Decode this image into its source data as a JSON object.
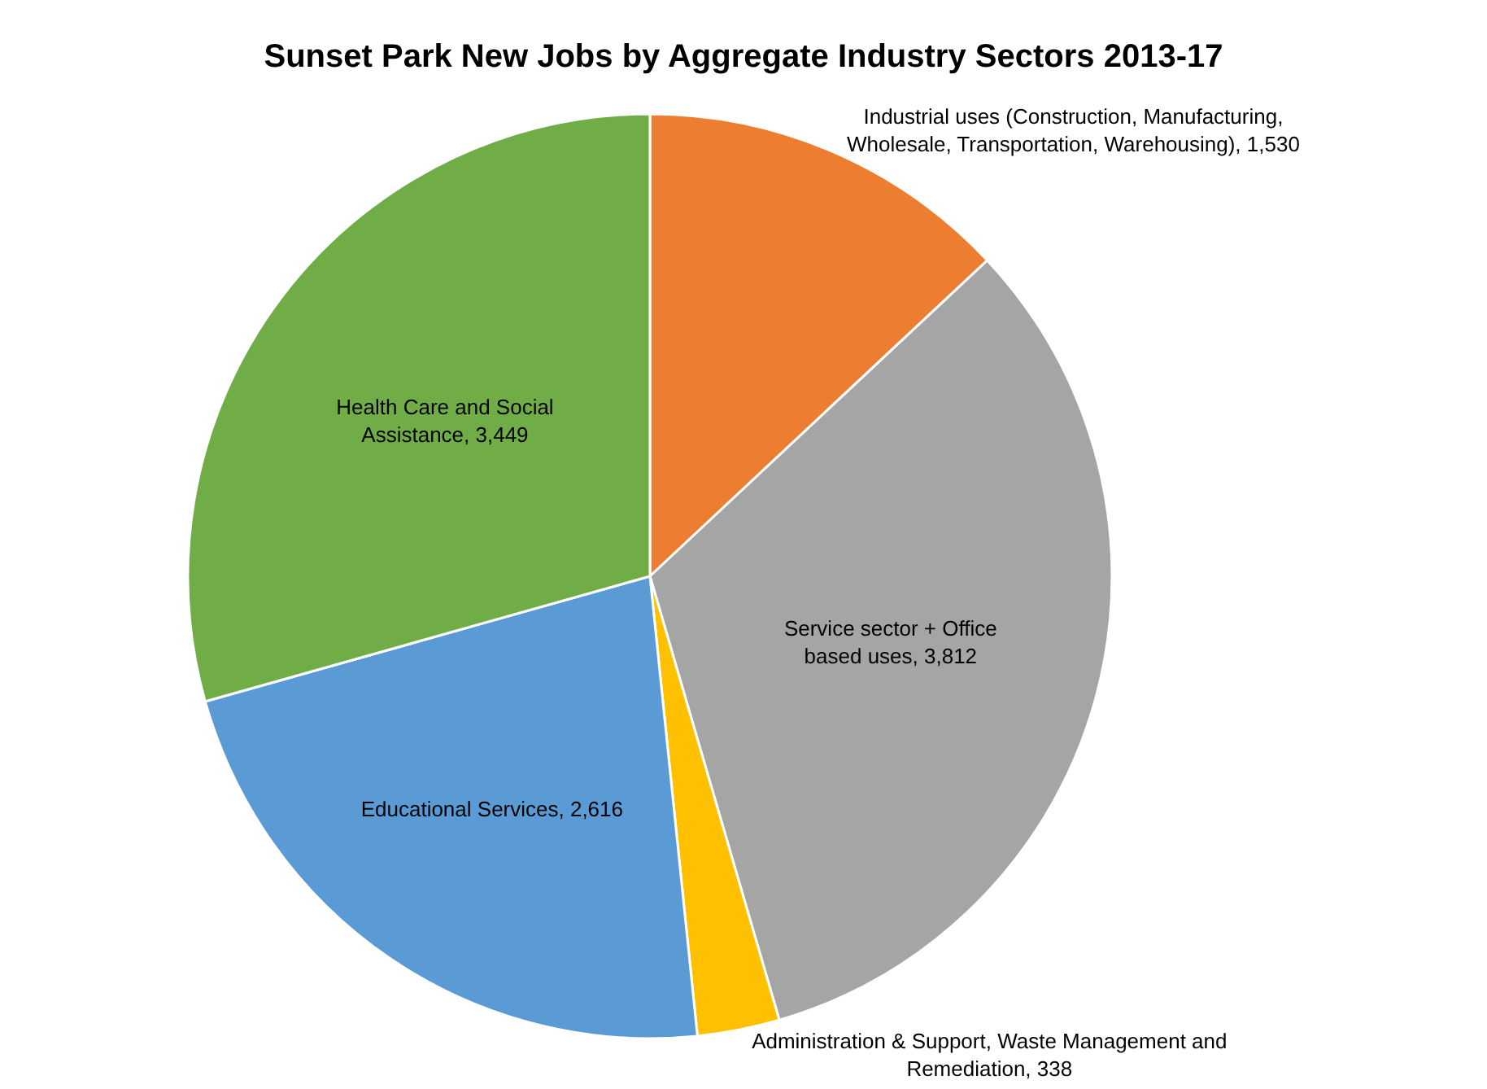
{
  "chart_data": {
    "type": "pie",
    "title": "Sunset Park New Jobs by Aggregate Industry Sectors 2013-17",
    "categories": [
      "Industrial uses (Construction, Manufacturing, Wholesale, Transportation, Warehousing)",
      "Service sector + Office based uses",
      "Administration & Support, Waste Management and Remediation",
      "Educational Services",
      "Health Care and Social Assistance"
    ],
    "values": [
      1530,
      3812,
      338,
      2616,
      3449
    ],
    "value_labels": [
      "1,530",
      "3,812",
      "338",
      "2,616",
      "3,449"
    ],
    "colors": [
      "#ed7d31",
      "#a5a5a5",
      "#ffc000",
      "#5b9bd5",
      "#70ad47"
    ]
  }
}
